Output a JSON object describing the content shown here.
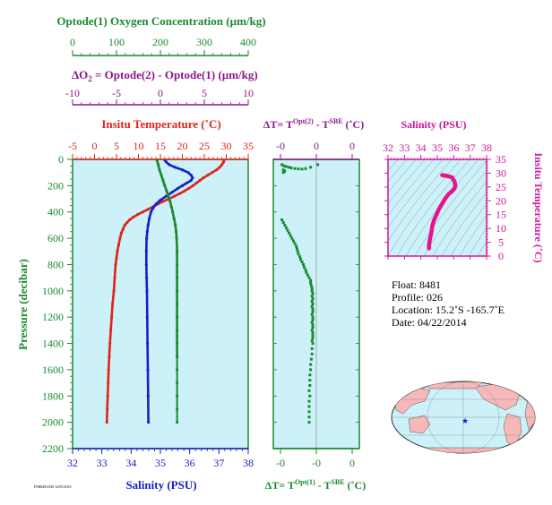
{
  "colors": {
    "oxygen": "#1a8a2e",
    "delta_o2": "#8a1a8a",
    "temperature": "#e0241c",
    "salinity": "#1520c8",
    "ts": "#e8128e",
    "panel_bg": "#ccf1f8"
  },
  "labels": {
    "oxygen_title": "Optode(1) Oxygen Concentration (µm/kg)",
    "delta_o2_title_pre": "ΔO",
    "delta_o2_title_sub": "2",
    "delta_o2_title_post": " = Optode(2) - Optode(1)    (µm/kg)",
    "temp_title": "Insitu Temperature (˚C)",
    "salinity_title": "Salinity (PSU)",
    "pressure_title": "Pressure (decibar)",
    "dt_top_pre": "ΔT= T",
    "dt_top_sup1": "Opt(2)",
    "dt_top_mid": " - T",
    "dt_top_sup2": "SBE",
    "dt_top_post": " (˚C)",
    "dt_bot_pre": "ΔT= T",
    "dt_bot_sup1": "Opt(1)",
    "dt_bot_mid": " - T",
    "dt_bot_sup2": "SBE",
    "dt_bot_post": " (˚C)",
    "ts_sal_title": "Salinity (PSU)",
    "ts_temp_title": "Insitu Temperature (˚C)",
    "small_tag": "FSR8481/026 12/05/2016"
  },
  "float_info": {
    "float": "Float:  8481",
    "profile": "Profile:  026",
    "location": "Location:  15.2˚S  -165.7˚E",
    "date": "Date:  04/22/2014"
  },
  "chart_data": [
    {
      "type": "line",
      "name": "profile",
      "ylabel": "Pressure (decibar)",
      "ylim": [
        2200,
        0
      ],
      "yticks": [
        0,
        200,
        400,
        600,
        800,
        1000,
        1200,
        1400,
        1600,
        1800,
        2000,
        2200
      ],
      "axes": {
        "oxygen": {
          "label": "Optode(1) Oxygen Concentration (µm/kg)",
          "range": [
            0,
            400
          ],
          "ticks": [
            0,
            100,
            200,
            300,
            400
          ]
        },
        "delta_o2": {
          "label": "ΔO2 = Optode(2) - Optode(1) (µm/kg)",
          "range": [
            -10,
            10
          ],
          "ticks": [
            -10,
            -5,
            0,
            5,
            10
          ]
        },
        "temperature": {
          "label": "Insitu Temperature (˚C)",
          "range": [
            -5,
            35
          ],
          "ticks": [
            -5,
            0,
            5,
            10,
            15,
            20,
            25,
            30,
            35
          ]
        },
        "salinity": {
          "label": "Salinity (PSU)",
          "range": [
            32,
            38
          ],
          "ticks": [
            32,
            33,
            34,
            35,
            36,
            37,
            38
          ]
        }
      },
      "series": [
        {
          "name": "Temperature",
          "axis": "temperature",
          "points": [
            [
              29.5,
              5
            ],
            [
              29.4,
              15
            ],
            [
              29.3,
              25
            ],
            [
              29,
              40
            ],
            [
              28.5,
              60
            ],
            [
              27.8,
              80
            ],
            [
              26.8,
              100
            ],
            [
              25.8,
              120
            ],
            [
              24.8,
              140
            ],
            [
              24,
              160
            ],
            [
              23.2,
              180
            ],
            [
              22.4,
              200
            ],
            [
              21.5,
              220
            ],
            [
              20.5,
              240
            ],
            [
              19.4,
              260
            ],
            [
              18.2,
              280
            ],
            [
              17,
              300
            ],
            [
              15.6,
              320
            ],
            [
              14.4,
              340
            ],
            [
              13.3,
              360
            ],
            [
              12.2,
              380
            ],
            [
              11,
              400
            ],
            [
              9.8,
              420
            ],
            [
              8.8,
              440
            ],
            [
              8,
              460
            ],
            [
              7.4,
              480
            ],
            [
              6.9,
              500
            ],
            [
              6.5,
              530
            ],
            [
              6.1,
              560
            ],
            [
              5.8,
              600
            ],
            [
              5.5,
              650
            ],
            [
              5.2,
              700
            ],
            [
              5,
              750
            ],
            [
              4.8,
              800
            ],
            [
              4.6,
              900
            ],
            [
              4.4,
              1000
            ],
            [
              4.1,
              1100
            ],
            [
              3.9,
              1200
            ],
            [
              3.7,
              1300
            ],
            [
              3.5,
              1400
            ],
            [
              3.35,
              1500
            ],
            [
              3.2,
              1600
            ],
            [
              3.1,
              1700
            ],
            [
              3,
              1800
            ],
            [
              2.9,
              1900
            ],
            [
              2.8,
              2000
            ]
          ]
        },
        {
          "name": "Salinity",
          "axis": "salinity",
          "points": [
            [
              35.15,
              5
            ],
            [
              35.2,
              20
            ],
            [
              35.3,
              40
            ],
            [
              35.5,
              60
            ],
            [
              35.75,
              80
            ],
            [
              35.95,
              100
            ],
            [
              36.05,
              120
            ],
            [
              36.1,
              140
            ],
            [
              36.05,
              160
            ],
            [
              35.9,
              180
            ],
            [
              35.75,
              200
            ],
            [
              35.6,
              220
            ],
            [
              35.4,
              250
            ],
            [
              35.2,
              280
            ],
            [
              35.0,
              310
            ],
            [
              34.85,
              340
            ],
            [
              34.75,
              370
            ],
            [
              34.68,
              400
            ],
            [
              34.62,
              450
            ],
            [
              34.58,
              500
            ],
            [
              34.55,
              550
            ],
            [
              34.53,
              600
            ],
            [
              34.52,
              700
            ],
            [
              34.52,
              800
            ],
            [
              34.53,
              900
            ],
            [
              34.54,
              1000
            ],
            [
              34.55,
              1200
            ],
            [
              34.56,
              1400
            ],
            [
              34.57,
              1600
            ],
            [
              34.58,
              1800
            ],
            [
              34.59,
              2000
            ]
          ]
        },
        {
          "name": "Oxygen",
          "axis": "oxygen",
          "points": [
            [
              192,
              5
            ],
            [
              195,
              40
            ],
            [
              198,
              80
            ],
            [
              202,
              120
            ],
            [
              206,
              160
            ],
            [
              210,
              200
            ],
            [
              214,
              240
            ],
            [
              218,
              280
            ],
            [
              222,
              320
            ],
            [
              225,
              360
            ],
            [
              228,
              400
            ],
            [
              231,
              450
            ],
            [
              234,
              500
            ],
            [
              236,
              550
            ],
            [
              237,
              600
            ],
            [
              238,
              700
            ],
            [
              238,
              800
            ],
            [
              238,
              900
            ],
            [
              238,
              1000
            ],
            [
              238,
              1100
            ],
            [
              238,
              1200
            ],
            [
              238,
              1300
            ],
            [
              238,
              1400
            ],
            [
              238,
              1500
            ]
          ]
        },
        {
          "name": "Oxygen deep",
          "axis": "oxygen",
          "points": [
            [
              238,
              1500
            ],
            [
              238,
              1600
            ],
            [
              238,
              1700
            ],
            [
              238,
              1800
            ],
            [
              238,
              1900
            ],
            [
              238,
              2000
            ]
          ]
        }
      ]
    },
    {
      "type": "scatter",
      "name": "delta_t",
      "xlim": [
        -0.6,
        0.6
      ],
      "ylim": [
        2200,
        0
      ],
      "ticks_top": [
        -0.5,
        0,
        0.5
      ],
      "ticks_top_labels": [
        "-0",
        "0",
        "0"
      ],
      "ticks_bottom": [
        -0.5,
        0,
        0.5
      ],
      "ticks_bottom_labels": [
        "-0",
        "-0",
        "0"
      ],
      "series": [
        {
          "name": "Opt(2)-SBE",
          "points": [
            [
              -0.48,
              40
            ],
            [
              -0.45,
              50
            ],
            [
              -0.42,
              55
            ],
            [
              -0.38,
              60
            ],
            [
              -0.35,
              65
            ],
            [
              -0.3,
              70
            ],
            [
              -0.25,
              72
            ],
            [
              -0.2,
              74
            ],
            [
              -0.15,
              70
            ],
            [
              -0.08,
              60
            ],
            [
              0.02,
              40
            ],
            [
              -0.46,
              80
            ],
            [
              -0.44,
              90
            ],
            [
              -0.46,
              100
            ]
          ]
        },
        {
          "name": "Opt(1)-SBE",
          "points": [
            [
              -0.48,
              460
            ],
            [
              -0.46,
              480
            ],
            [
              -0.44,
              500
            ],
            [
              -0.42,
              520
            ],
            [
              -0.4,
              540
            ],
            [
              -0.38,
              560
            ],
            [
              -0.36,
              580
            ],
            [
              -0.34,
              600
            ],
            [
              -0.32,
              620
            ],
            [
              -0.3,
              640
            ],
            [
              -0.28,
              660
            ],
            [
              -0.27,
              680
            ],
            [
              -0.26,
              700
            ],
            [
              -0.25,
              720
            ],
            [
              -0.23,
              740
            ],
            [
              -0.22,
              760
            ],
            [
              -0.2,
              780
            ],
            [
              -0.18,
              800
            ],
            [
              -0.17,
              820
            ],
            [
              -0.15,
              840
            ],
            [
              -0.14,
              860
            ],
            [
              -0.12,
              880
            ],
            [
              -0.1,
              900
            ],
            [
              -0.08,
              920
            ],
            [
              -0.08,
              940
            ],
            [
              -0.07,
              960
            ],
            [
              -0.06,
              980
            ],
            [
              -0.06,
              1000
            ],
            [
              -0.05,
              1020
            ],
            [
              -0.06,
              1040
            ],
            [
              -0.05,
              1060
            ],
            [
              -0.06,
              1080
            ],
            [
              -0.05,
              1100
            ],
            [
              -0.06,
              1120
            ],
            [
              -0.05,
              1140
            ],
            [
              -0.05,
              1160
            ],
            [
              -0.06,
              1180
            ],
            [
              -0.05,
              1200
            ],
            [
              -0.05,
              1220
            ],
            [
              -0.06,
              1240
            ],
            [
              -0.05,
              1260
            ],
            [
              -0.05,
              1280
            ],
            [
              -0.06,
              1300
            ],
            [
              -0.05,
              1320
            ],
            [
              -0.05,
              1340
            ],
            [
              -0.05,
              1360
            ],
            [
              -0.06,
              1380
            ],
            [
              -0.05,
              1400
            ],
            [
              -0.06,
              1440
            ],
            [
              -0.06,
              1480
            ],
            [
              -0.07,
              1520
            ],
            [
              -0.08,
              1560
            ],
            [
              -0.08,
              1600
            ],
            [
              -0.09,
              1640
            ],
            [
              -0.09,
              1680
            ],
            [
              -0.09,
              1720
            ],
            [
              -0.1,
              1760
            ],
            [
              -0.09,
              1800
            ],
            [
              -0.1,
              1840
            ],
            [
              -0.1,
              1880
            ],
            [
              -0.1,
              1920
            ],
            [
              -0.1,
              1960
            ],
            [
              -0.1,
              2000
            ]
          ]
        }
      ]
    },
    {
      "type": "line",
      "name": "ts_diagram",
      "xlabel": "Salinity (PSU)",
      "ylabel": "Insitu Temperature (˚C)",
      "xlim": [
        32,
        38
      ],
      "ylim": [
        0,
        35
      ],
      "xticks": [
        32,
        33,
        34,
        35,
        36,
        37,
        38
      ],
      "yticks": [
        0,
        5,
        10,
        15,
        20,
        25,
        30,
        35
      ],
      "series": [
        {
          "name": "TS",
          "points": [
            [
              34.5,
              2.8
            ],
            [
              34.5,
              4
            ],
            [
              34.52,
              5
            ],
            [
              34.55,
              6
            ],
            [
              34.6,
              7.5
            ],
            [
              34.65,
              9
            ],
            [
              34.7,
              11
            ],
            [
              34.8,
              13
            ],
            [
              34.95,
              15
            ],
            [
              35.1,
              17
            ],
            [
              35.3,
              19
            ],
            [
              35.5,
              21
            ],
            [
              35.7,
              22.5
            ],
            [
              35.9,
              23.5
            ],
            [
              36.05,
              24.5
            ],
            [
              36.1,
              25.5
            ],
            [
              36.05,
              27
            ],
            [
              35.9,
              28.5
            ],
            [
              35.6,
              29
            ],
            [
              35.3,
              29.3
            ]
          ]
        }
      ]
    }
  ]
}
